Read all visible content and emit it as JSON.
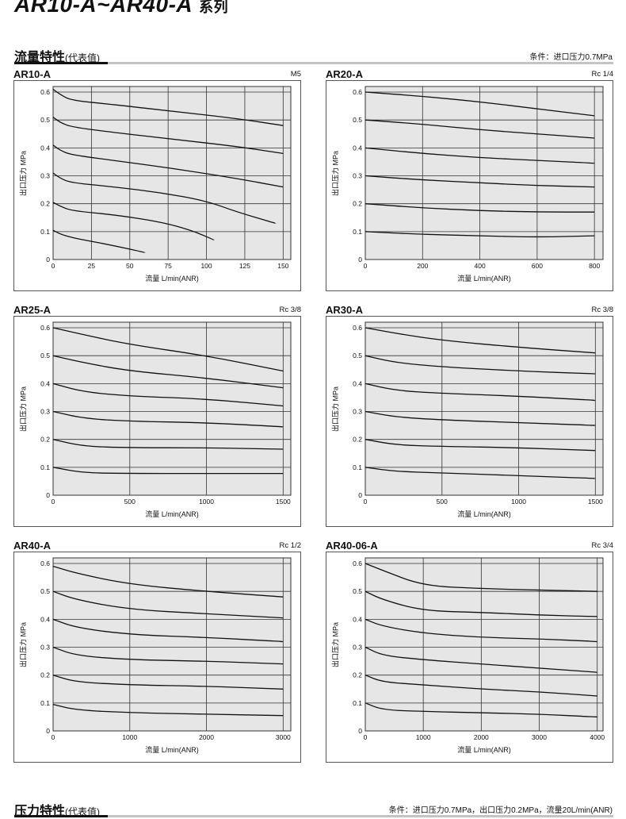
{
  "header": {
    "series_title": "AR10-A~AR40-A",
    "series_suffix": "系列"
  },
  "flow_section": {
    "title": "流量特性",
    "title_small": "(代表值)",
    "condition": "条件：进口压力0.7MPa"
  },
  "pressure_section": {
    "title": "压力特性",
    "title_small": "(代表值)",
    "condition": "条件：进口压力0.7MPa，出口压力0.2MPa，流量20L/min(ANR)"
  },
  "chart_data": [
    {
      "type": "line",
      "title": "AR10-A",
      "port": "M5",
      "xlabel": "流量 L/min(ANR)",
      "ylabel": "出口压力 MPa",
      "xlim": [
        0,
        155
      ],
      "ylim": [
        0,
        0.62
      ],
      "xticks": [
        0,
        25,
        50,
        75,
        100,
        125,
        150
      ],
      "yticks": [
        0,
        0.1,
        0.2,
        0.3,
        0.4,
        0.5,
        0.6
      ],
      "grid": true,
      "series": [
        {
          "points": [
            [
              0,
              0.61
            ],
            [
              5,
              0.59
            ],
            [
              12,
              0.57
            ],
            [
              40,
              0.555
            ],
            [
              80,
              0.53
            ],
            [
              120,
              0.505
            ],
            [
              150,
              0.48
            ]
          ]
        },
        {
          "points": [
            [
              0,
              0.51
            ],
            [
              5,
              0.49
            ],
            [
              12,
              0.475
            ],
            [
              40,
              0.455
            ],
            [
              80,
              0.43
            ],
            [
              120,
              0.405
            ],
            [
              150,
              0.38
            ]
          ]
        },
        {
          "points": [
            [
              0,
              0.41
            ],
            [
              5,
              0.39
            ],
            [
              12,
              0.375
            ],
            [
              40,
              0.355
            ],
            [
              80,
              0.325
            ],
            [
              120,
              0.29
            ],
            [
              150,
              0.26
            ]
          ]
        },
        {
          "points": [
            [
              0,
              0.31
            ],
            [
              5,
              0.29
            ],
            [
              12,
              0.275
            ],
            [
              40,
              0.26
            ],
            [
              70,
              0.24
            ],
            [
              100,
              0.21
            ],
            [
              120,
              0.17
            ],
            [
              145,
              0.13
            ]
          ]
        },
        {
          "points": [
            [
              0,
              0.205
            ],
            [
              5,
              0.19
            ],
            [
              12,
              0.175
            ],
            [
              40,
              0.16
            ],
            [
              70,
              0.135
            ],
            [
              90,
              0.105
            ],
            [
              105,
              0.07
            ]
          ]
        },
        {
          "points": [
            [
              0,
              0.105
            ],
            [
              5,
              0.09
            ],
            [
              15,
              0.075
            ],
            [
              35,
              0.055
            ],
            [
              60,
              0.025
            ]
          ]
        }
      ]
    },
    {
      "type": "line",
      "title": "AR20-A",
      "port": "Rc 1/4",
      "xlabel": "流量 L/min(ANR)",
      "ylabel": "出口压力 MPa",
      "xlim": [
        0,
        830
      ],
      "ylim": [
        0,
        0.62
      ],
      "xticks": [
        0,
        200,
        400,
        600,
        800
      ],
      "yticks": [
        0,
        0.1,
        0.2,
        0.3,
        0.4,
        0.5,
        0.6
      ],
      "grid": true,
      "series": [
        {
          "points": [
            [
              0,
              0.6
            ],
            [
              200,
              0.585
            ],
            [
              400,
              0.565
            ],
            [
              600,
              0.54
            ],
            [
              800,
              0.515
            ]
          ]
        },
        {
          "points": [
            [
              0,
              0.5
            ],
            [
              200,
              0.485
            ],
            [
              400,
              0.465
            ],
            [
              600,
              0.45
            ],
            [
              800,
              0.435
            ]
          ]
        },
        {
          "points": [
            [
              0,
              0.4
            ],
            [
              200,
              0.38
            ],
            [
              400,
              0.365
            ],
            [
              600,
              0.355
            ],
            [
              800,
              0.345
            ]
          ]
        },
        {
          "points": [
            [
              0,
              0.3
            ],
            [
              200,
              0.285
            ],
            [
              400,
              0.275
            ],
            [
              600,
              0.265
            ],
            [
              800,
              0.26
            ]
          ]
        },
        {
          "points": [
            [
              0,
              0.2
            ],
            [
              200,
              0.185
            ],
            [
              400,
              0.175
            ],
            [
              600,
              0.17
            ],
            [
              800,
              0.17
            ]
          ]
        },
        {
          "points": [
            [
              0,
              0.1
            ],
            [
              200,
              0.09
            ],
            [
              400,
              0.085
            ],
            [
              600,
              0.08
            ],
            [
              800,
              0.085
            ]
          ]
        }
      ]
    },
    {
      "type": "line",
      "title": "AR25-A",
      "port": "Rc 3/8",
      "xlabel": "流量 L/min(ANR)",
      "ylabel": "出口压力 MPa",
      "xlim": [
        0,
        1550
      ],
      "ylim": [
        0,
        0.62
      ],
      "xticks": [
        0,
        500,
        1000,
        1500
      ],
      "yticks": [
        0,
        0.1,
        0.2,
        0.3,
        0.4,
        0.5,
        0.6
      ],
      "grid": true,
      "series": [
        {
          "points": [
            [
              0,
              0.6
            ],
            [
              200,
              0.575
            ],
            [
              500,
              0.54
            ],
            [
              1000,
              0.5
            ],
            [
              1500,
              0.445
            ]
          ]
        },
        {
          "points": [
            [
              0,
              0.5
            ],
            [
              200,
              0.475
            ],
            [
              500,
              0.445
            ],
            [
              1000,
              0.42
            ],
            [
              1500,
              0.385
            ]
          ]
        },
        {
          "points": [
            [
              0,
              0.4
            ],
            [
              200,
              0.37
            ],
            [
              500,
              0.355
            ],
            [
              1000,
              0.345
            ],
            [
              1500,
              0.32
            ]
          ]
        },
        {
          "points": [
            [
              0,
              0.3
            ],
            [
              200,
              0.275
            ],
            [
              500,
              0.265
            ],
            [
              1000,
              0.26
            ],
            [
              1500,
              0.245
            ]
          ]
        },
        {
          "points": [
            [
              0,
              0.2
            ],
            [
              200,
              0.175
            ],
            [
              500,
              0.17
            ],
            [
              1000,
              0.17
            ],
            [
              1500,
              0.165
            ]
          ]
        },
        {
          "points": [
            [
              0,
              0.1
            ],
            [
              200,
              0.08
            ],
            [
              500,
              0.078
            ],
            [
              1000,
              0.078
            ],
            [
              1500,
              0.078
            ]
          ]
        }
      ]
    },
    {
      "type": "line",
      "title": "AR30-A",
      "port": "Rc 3/8",
      "xlabel": "流量 L/min(ANR)",
      "ylabel": "出口压力 MPa",
      "xlim": [
        0,
        1550
      ],
      "ylim": [
        0,
        0.62
      ],
      "xticks": [
        0,
        500,
        1000,
        1500
      ],
      "yticks": [
        0,
        0.1,
        0.2,
        0.3,
        0.4,
        0.5,
        0.6
      ],
      "grid": true,
      "series": [
        {
          "points": [
            [
              0,
              0.6
            ],
            [
              200,
              0.58
            ],
            [
              500,
              0.555
            ],
            [
              1000,
              0.53
            ],
            [
              1500,
              0.51
            ]
          ]
        },
        {
          "points": [
            [
              0,
              0.5
            ],
            [
              200,
              0.475
            ],
            [
              500,
              0.46
            ],
            [
              1000,
              0.445
            ],
            [
              1500,
              0.435
            ]
          ]
        },
        {
          "points": [
            [
              0,
              0.4
            ],
            [
              200,
              0.375
            ],
            [
              500,
              0.365
            ],
            [
              1000,
              0.355
            ],
            [
              1500,
              0.34
            ]
          ]
        },
        {
          "points": [
            [
              0,
              0.3
            ],
            [
              200,
              0.28
            ],
            [
              500,
              0.27
            ],
            [
              1000,
              0.26
            ],
            [
              1500,
              0.25
            ]
          ]
        },
        {
          "points": [
            [
              0,
              0.2
            ],
            [
              200,
              0.18
            ],
            [
              500,
              0.175
            ],
            [
              1000,
              0.17
            ],
            [
              1500,
              0.16
            ]
          ]
        },
        {
          "points": [
            [
              0,
              0.1
            ],
            [
              200,
              0.085
            ],
            [
              500,
              0.08
            ],
            [
              1000,
              0.07
            ],
            [
              1500,
              0.06
            ]
          ]
        }
      ]
    },
    {
      "type": "line",
      "title": "AR40-A",
      "port": "Rc 1/2",
      "xlabel": "流量 L/min(ANR)",
      "ylabel": "出口压力 MPa",
      "xlim": [
        0,
        3100
      ],
      "ylim": [
        0,
        0.62
      ],
      "xticks": [
        0,
        1000,
        2000,
        3000
      ],
      "yticks": [
        0,
        0.1,
        0.2,
        0.3,
        0.4,
        0.5,
        0.6
      ],
      "grid": true,
      "series": [
        {
          "points": [
            [
              0,
              0.59
            ],
            [
              300,
              0.565
            ],
            [
              1000,
              0.525
            ],
            [
              2000,
              0.5
            ],
            [
              3000,
              0.48
            ]
          ]
        },
        {
          "points": [
            [
              0,
              0.5
            ],
            [
              300,
              0.47
            ],
            [
              1000,
              0.435
            ],
            [
              2000,
              0.42
            ],
            [
              3000,
              0.405
            ]
          ]
        },
        {
          "points": [
            [
              0,
              0.4
            ],
            [
              300,
              0.37
            ],
            [
              1000,
              0.345
            ],
            [
              2000,
              0.335
            ],
            [
              3000,
              0.32
            ]
          ]
        },
        {
          "points": [
            [
              0,
              0.3
            ],
            [
              300,
              0.27
            ],
            [
              1000,
              0.255
            ],
            [
              2000,
              0.25
            ],
            [
              3000,
              0.24
            ]
          ]
        },
        {
          "points": [
            [
              0,
              0.2
            ],
            [
              300,
              0.175
            ],
            [
              1000,
              0.165
            ],
            [
              2000,
              0.16
            ],
            [
              3000,
              0.15
            ]
          ]
        },
        {
          "points": [
            [
              0,
              0.095
            ],
            [
              300,
              0.075
            ],
            [
              1000,
              0.065
            ],
            [
              2000,
              0.06
            ],
            [
              3000,
              0.055
            ]
          ]
        }
      ]
    },
    {
      "type": "line",
      "title": "AR40-06-A",
      "port": "Rc 3/4",
      "xlabel": "流量 L/min(ANR)",
      "ylabel": "出口压力 MPa",
      "xlim": [
        0,
        4100
      ],
      "ylim": [
        0,
        0.62
      ],
      "xticks": [
        0,
        1000,
        2000,
        3000,
        4000
      ],
      "yticks": [
        0,
        0.1,
        0.2,
        0.3,
        0.4,
        0.5,
        0.6
      ],
      "grid": true,
      "series": [
        {
          "points": [
            [
              0,
              0.6
            ],
            [
              300,
              0.575
            ],
            [
              1000,
              0.52
            ],
            [
              2000,
              0.51
            ],
            [
              3000,
              0.505
            ],
            [
              4000,
              0.5
            ]
          ]
        },
        {
          "points": [
            [
              0,
              0.5
            ],
            [
              300,
              0.47
            ],
            [
              1000,
              0.43
            ],
            [
              2000,
              0.425
            ],
            [
              3000,
              0.415
            ],
            [
              4000,
              0.41
            ]
          ]
        },
        {
          "points": [
            [
              0,
              0.4
            ],
            [
              300,
              0.375
            ],
            [
              1000,
              0.35
            ],
            [
              2000,
              0.335
            ],
            [
              3000,
              0.33
            ],
            [
              4000,
              0.32
            ]
          ]
        },
        {
          "points": [
            [
              0,
              0.3
            ],
            [
              300,
              0.27
            ],
            [
              1000,
              0.255
            ],
            [
              2000,
              0.24
            ],
            [
              3000,
              0.225
            ],
            [
              4000,
              0.21
            ]
          ]
        },
        {
          "points": [
            [
              0,
              0.2
            ],
            [
              300,
              0.175
            ],
            [
              1000,
              0.165
            ],
            [
              2000,
              0.15
            ],
            [
              3000,
              0.14
            ],
            [
              4000,
              0.125
            ]
          ]
        },
        {
          "points": [
            [
              0,
              0.1
            ],
            [
              300,
              0.075
            ],
            [
              1000,
              0.07
            ],
            [
              2000,
              0.065
            ],
            [
              3000,
              0.06
            ],
            [
              4000,
              0.05
            ]
          ]
        }
      ]
    }
  ]
}
